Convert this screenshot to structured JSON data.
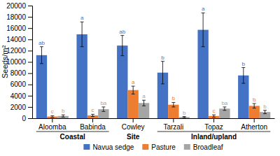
{
  "chart_data": {
    "type": "bar",
    "categories": [
      "Aloomba",
      "Babinda",
      "Cowley",
      "Tarzali",
      "Topaz",
      "Atherton"
    ],
    "series": [
      {
        "name": "Navua sedge",
        "color": "#4472C4",
        "values": [
          11200,
          14900,
          12900,
          8100,
          15700,
          7600
        ],
        "errors": [
          1500,
          2200,
          1800,
          2000,
          3000,
          1400
        ],
        "annotations": [
          "ab",
          "a",
          "ab",
          "b",
          "a",
          "b"
        ]
      },
      {
        "name": "Pasture",
        "color": "#ED7D31",
        "values": [
          300,
          500,
          5000,
          2400,
          400,
          2200
        ],
        "errors": [
          150,
          200,
          700,
          400,
          200,
          400
        ],
        "annotations": [
          "c",
          "c",
          "a",
          "b",
          "c",
          "b"
        ]
      },
      {
        "name": "Broadleaf",
        "color": "#A5A5A5",
        "values": [
          400,
          1600,
          2700,
          200,
          1700,
          1100
        ],
        "errors": [
          200,
          400,
          500,
          100,
          300,
          300
        ],
        "annotations": [
          "b",
          "ba",
          "a",
          "b",
          "ba",
          "b"
        ]
      }
    ],
    "y_label": "Seeds/m²",
    "ylim": [
      0,
      20000
    ],
    "yticks": [
      0,
      2000,
      4000,
      6000,
      8000,
      10000,
      12000,
      14000,
      16000,
      18000,
      20000
    ],
    "category_groups": [
      {
        "label": "Coastal",
        "categories": [
          "Aloomba",
          "Babinda"
        ]
      },
      {
        "label": "Site",
        "categories": [
          "Cowley"
        ]
      },
      {
        "label": "Inland/upland",
        "categories": [
          "Tarzali",
          "Topaz",
          "Atherton"
        ]
      }
    ],
    "grid": false,
    "legend": "bottom"
  }
}
